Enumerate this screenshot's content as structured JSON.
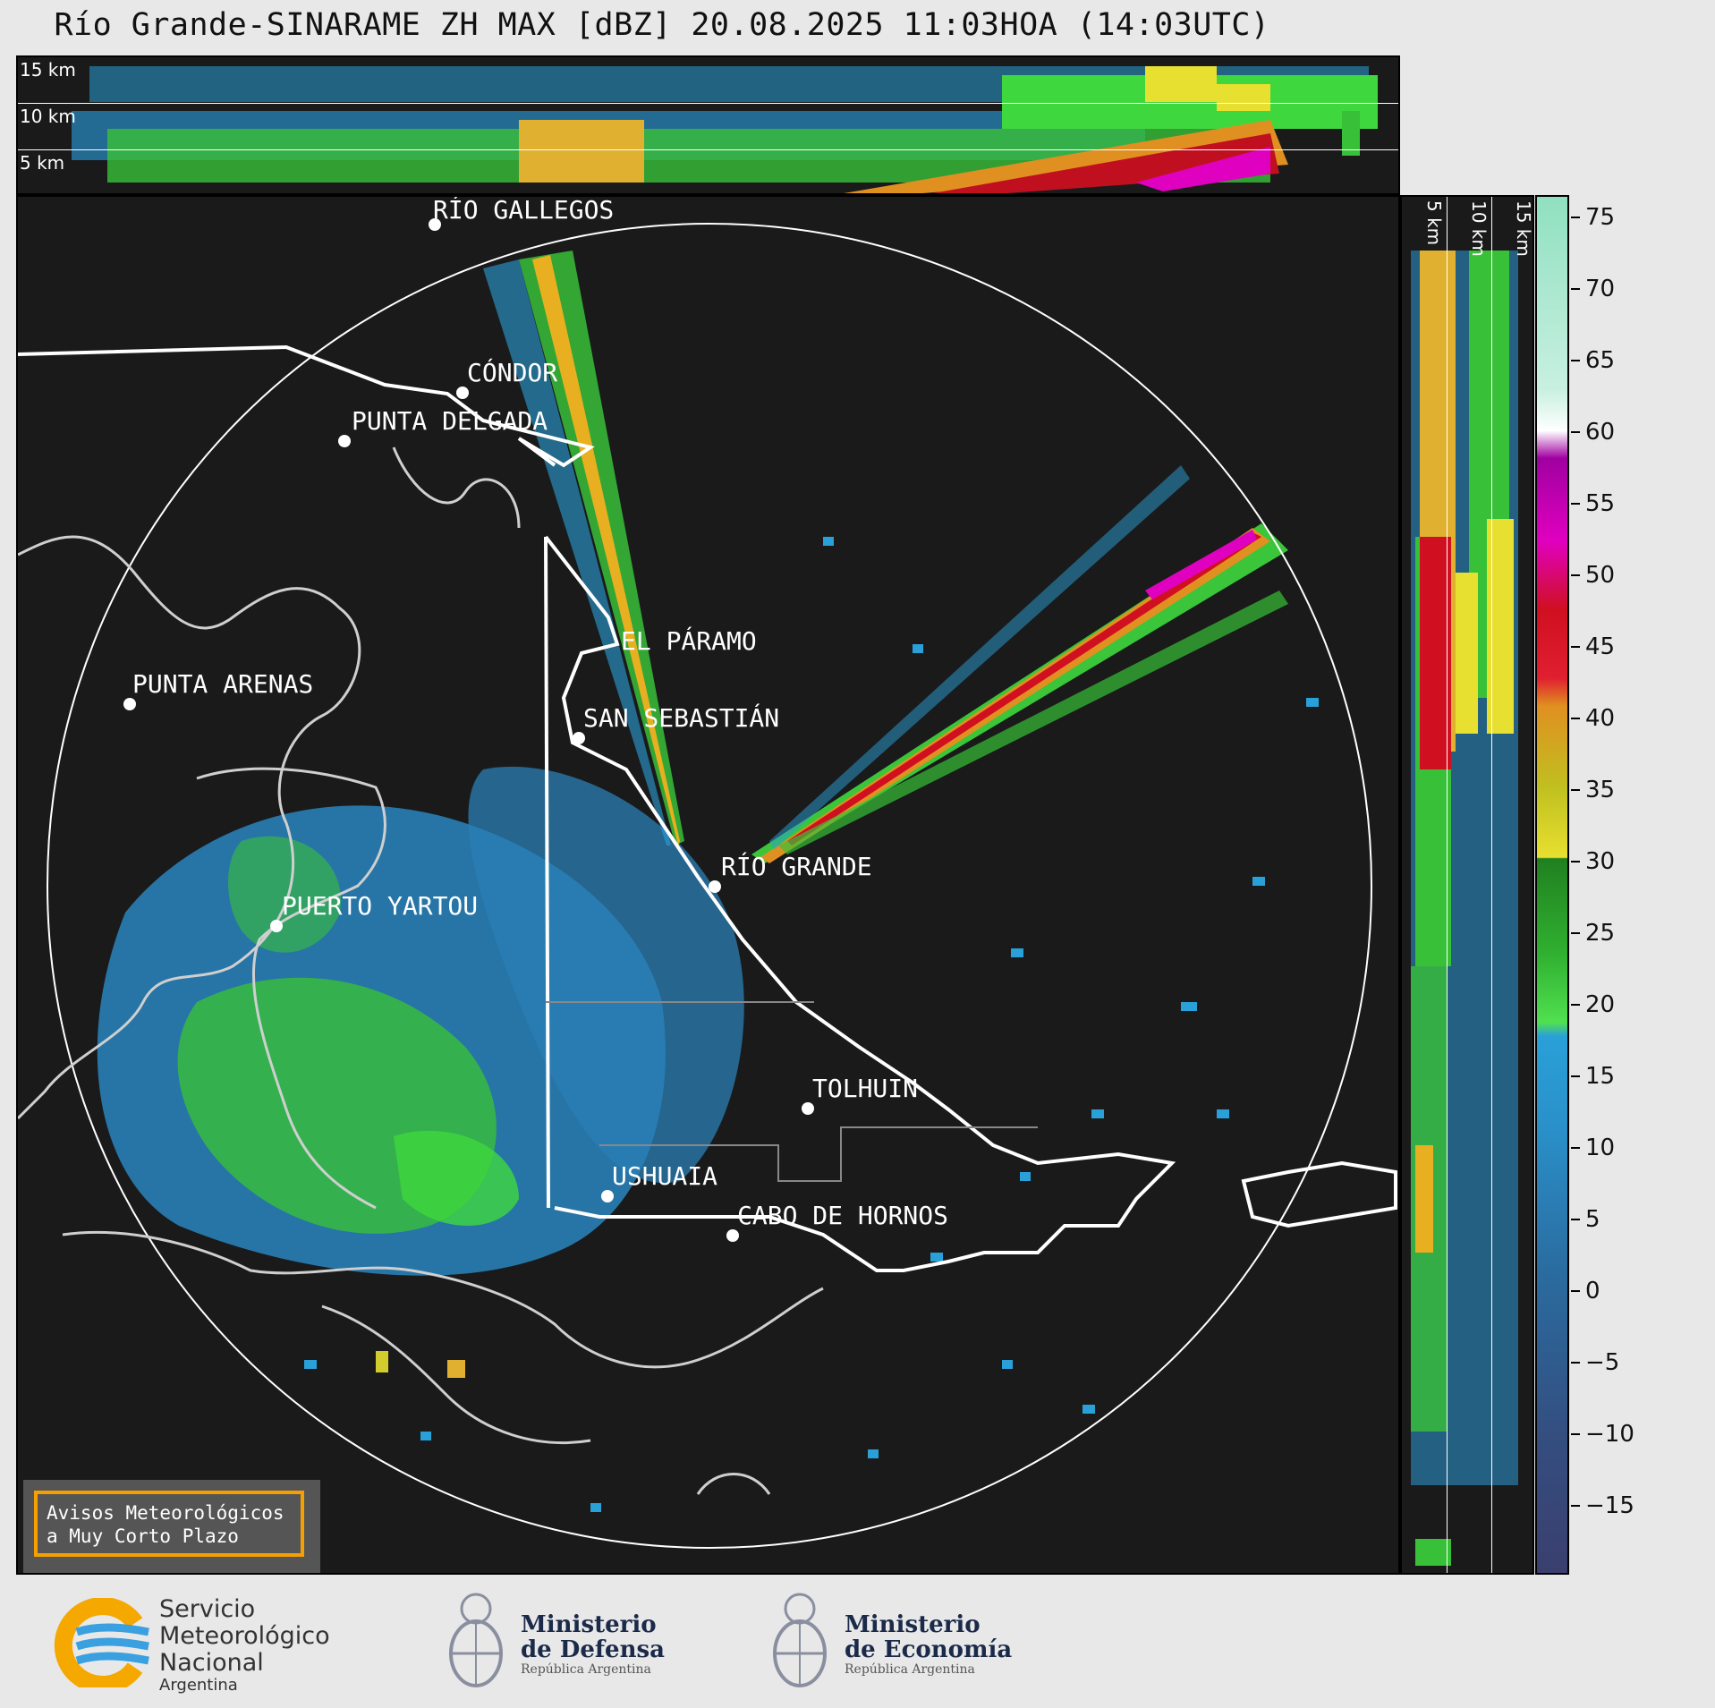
{
  "header": {
    "title": "Río Grande-SINARAME ZH MAX [dBZ] 20.08.2025 11:03HOA (14:03UTC)"
  },
  "height_labels": {
    "top": [
      "15 km",
      "10 km",
      "5 km"
    ],
    "side": [
      "5 km",
      "10 km",
      "15 km"
    ]
  },
  "cities": [
    {
      "name": "RÍO GALLEGOS"
    },
    {
      "name": "CÓNDOR"
    },
    {
      "name": "PUNTA DELGADA"
    },
    {
      "name": "EL PÁRAMO"
    },
    {
      "name": "PUNTA ARENAS"
    },
    {
      "name": "SAN SEBASTIÁN"
    },
    {
      "name": "RÍO GRANDE"
    },
    {
      "name": "PUERTO YARTOU"
    },
    {
      "name": "TOLHUIN"
    },
    {
      "name": "USHUAIA"
    },
    {
      "name": "CABO DE HORNOS"
    }
  ],
  "colorbar": {
    "unit": "dBZ",
    "ticks": [
      "75",
      "70",
      "65",
      "60",
      "55",
      "50",
      "45",
      "40",
      "35",
      "30",
      "25",
      "20",
      "15",
      "10",
      "5",
      "0",
      "−5",
      "−10",
      "−15"
    ],
    "colors": {
      "low": "#3a3f6e",
      "blue": "#2aa0d8",
      "green": "#38d038",
      "yellow": "#e8e030",
      "orange": "#e09020",
      "red": "#d01020",
      "magenta": "#e000c0",
      "white": "#ffffff",
      "mint": "#90e0c0"
    }
  },
  "alert": {
    "line1": "Avisos Meteorológicos",
    "line2": "a Muy Corto Plazo"
  },
  "logos": {
    "smn": {
      "line1": "Servicio",
      "line2": "Meteorológico",
      "line3": "Nacional",
      "line4": "Argentina"
    },
    "defensa": {
      "line1": "Ministerio",
      "line2": "de Defensa",
      "line3": "República Argentina"
    },
    "economia": {
      "line1": "Ministerio",
      "line2": "de Economía",
      "line3": "República Argentina"
    }
  }
}
